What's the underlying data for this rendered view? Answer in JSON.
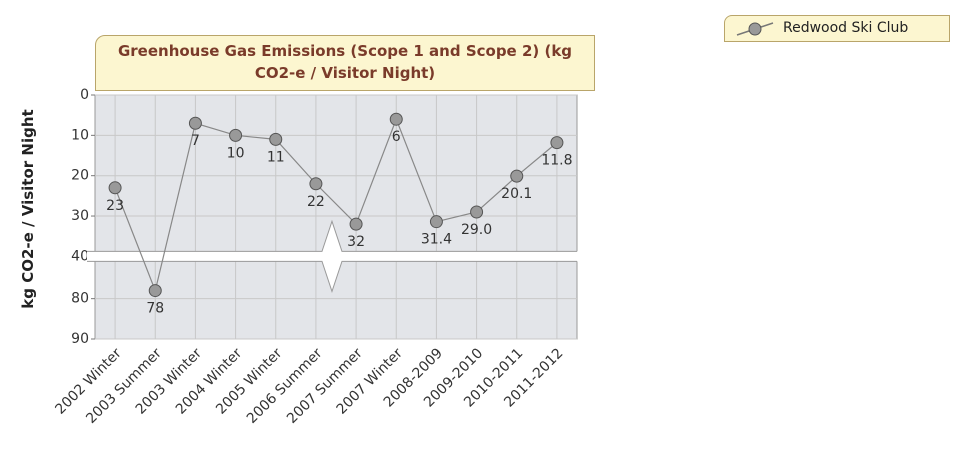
{
  "chart_data": {
    "type": "line",
    "title": "Greenhouse Gas Emissions (Scope 1 and Scope 2) (kg CO2-e / Visitor Night)",
    "y_label": "kg CO2-e / Visitor Night",
    "categories": [
      "2002 Winter",
      "2003 Summer",
      "2003 Winter",
      "2004 Winter",
      "2005 Winter",
      "2006 Summer",
      "2007 Summer",
      "2007 Winter",
      "2008-2009",
      "2009-2010",
      "2010-2011",
      "2011-2012"
    ],
    "series": [
      {
        "name": "Redwood Ski Club",
        "color": "#999999",
        "values": [
          23,
          78,
          7,
          10,
          11,
          22,
          32,
          6,
          31.4,
          29,
          20.1,
          11.8
        ],
        "value_labels": [
          "23",
          "78",
          "7",
          "10",
          "11",
          "22",
          "32",
          "6",
          "31.4",
          "29.0",
          "20.1",
          "11.8"
        ]
      }
    ],
    "ylim": [
      0,
      90
    ],
    "y_inverted": true,
    "axis_break": [
      40,
      72
    ],
    "yticks": [
      0,
      10,
      20,
      30,
      40,
      80,
      90
    ],
    "grid": true,
    "legend": "top-right"
  }
}
